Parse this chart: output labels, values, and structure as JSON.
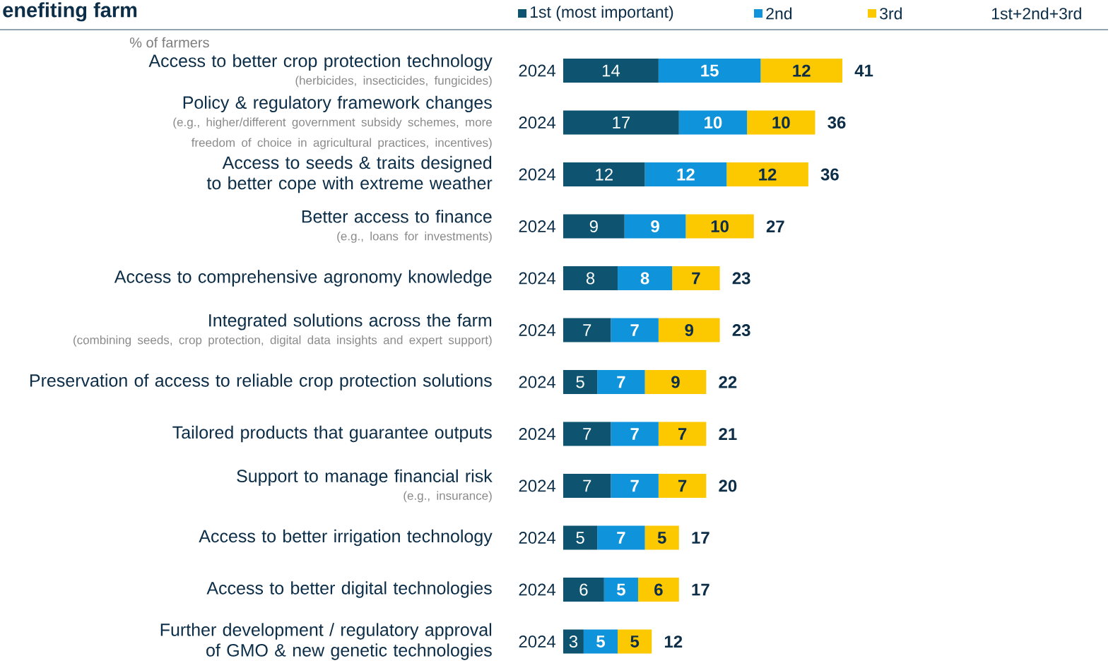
{
  "chart_data": {
    "type": "bar",
    "orientation": "horizontal",
    "stacked": true,
    "title": "enefiting farm",
    "subtitle": "% of farmers",
    "categories": [
      "Access to better crop protection technology",
      "Policy & regulatory framework changes",
      "Access to seeds & traits designed to better cope with extreme weather",
      "Better access to finance",
      "Access to comprehensive agronomy knowledge",
      "Integrated solutions across the farm",
      "Preservation of access to reliable crop protection solutions",
      "Tailored products that guarantee outputs",
      "Support to manage financial risk",
      "Access to better irrigation technology",
      "Access to better digital technologies",
      "Further development / regulatory approval of GMO & new genetic technologies"
    ],
    "series": [
      {
        "name": "1st (most important)",
        "color": "#0e5470",
        "values": [
          14,
          17,
          12,
          9,
          8,
          7,
          5,
          7,
          7,
          5,
          6,
          3
        ]
      },
      {
        "name": "2nd",
        "color": "#0f94dc",
        "values": [
          15,
          10,
          12,
          9,
          8,
          7,
          7,
          7,
          7,
          7,
          5,
          5
        ]
      },
      {
        "name": "3rd",
        "color": "#fcc800",
        "values": [
          12,
          10,
          12,
          10,
          7,
          9,
          9,
          7,
          7,
          5,
          6,
          5
        ]
      }
    ],
    "totals": [
      "41",
      "36",
      "36",
      "27",
      "23",
      "23",
      "22",
      "21",
      "20",
      "17",
      "17",
      "12"
    ],
    "tick_labels": false,
    "data_labels": true,
    "legend": "top",
    "annotations": [
      "1st+2nd+3rd",
      "(herbicides, insecticides, fungicides)",
      "(e.g., higher/different government subsidy schemes, more freedom of choice in agricultural practices, incentives)",
      "(e.g., loans for investments)",
      "(combining seeds, crop protection, digital data insights and expert support)",
      "(e.g., insurance)",
      "2024",
      "2024",
      "2024",
      "2024",
      "2024",
      "2024",
      "2024",
      "2024",
      "2024",
      "2024",
      "2024",
      "2024"
    ]
  }
}
